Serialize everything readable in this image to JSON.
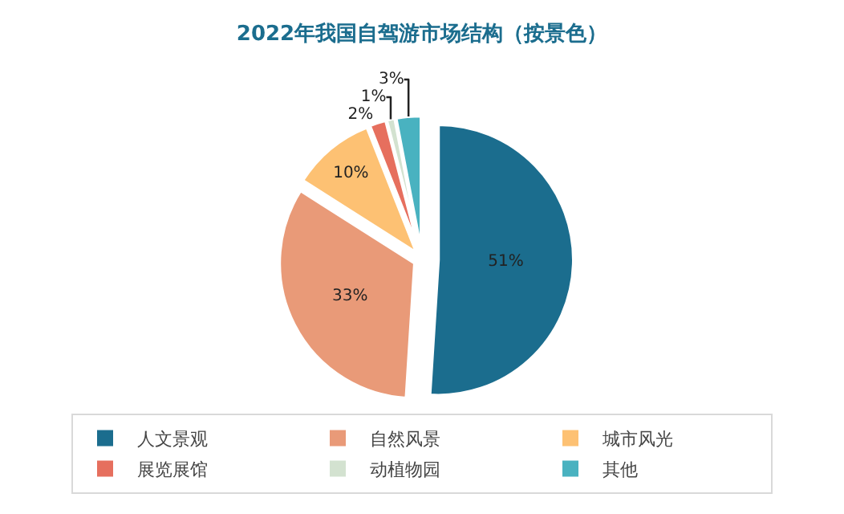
{
  "chart_data": {
    "type": "pie",
    "title": "2022年我国自驾游市场结构（按景色）",
    "categories": [
      "人文景观",
      "自然风景",
      "城市风光",
      "展览展馆",
      "动植物园",
      "其他"
    ],
    "values": [
      51,
      33,
      10,
      2,
      1,
      3
    ],
    "value_labels": [
      "51%",
      "33%",
      "10%",
      "2%",
      "1%",
      "3%"
    ],
    "colors": [
      "#1b6d8e",
      "#e99a78",
      "#fdc173",
      "#e66f5e",
      "#d3e2d0",
      "#49b2c0"
    ],
    "legend": "bottom"
  }
}
